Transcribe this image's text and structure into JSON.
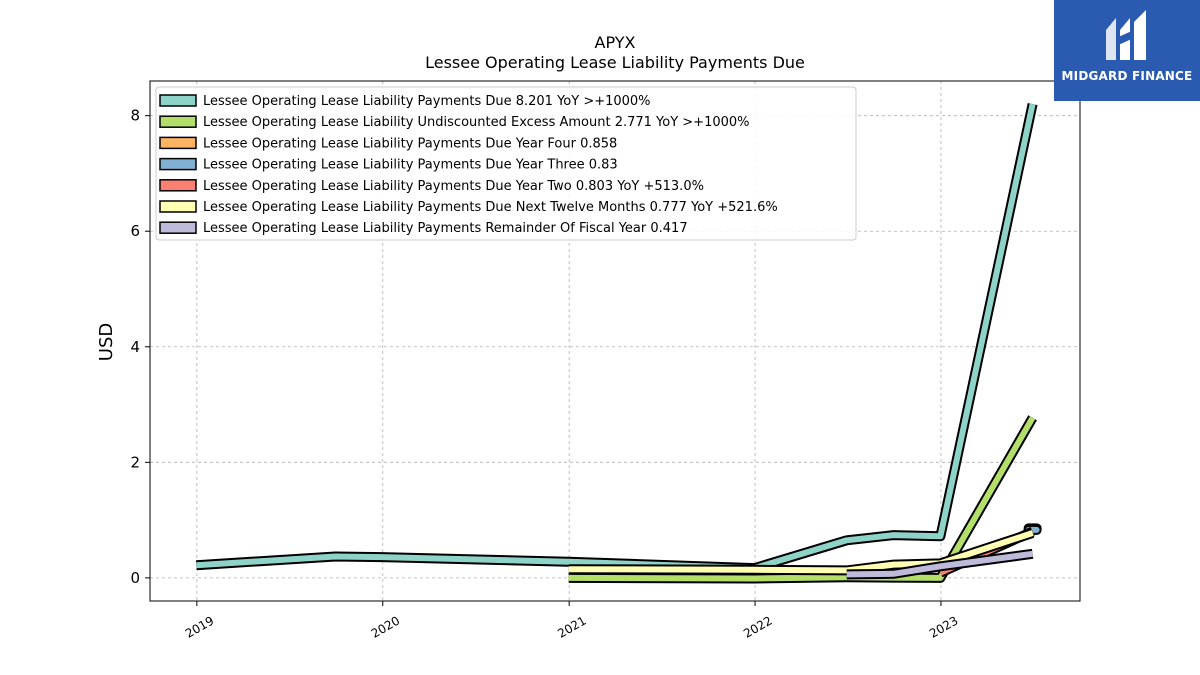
{
  "chart_data": {
    "type": "line",
    "title": "APYX",
    "subtitle": "Lessee Operating Lease Liability Payments Due",
    "ylabel": "USD",
    "xlabel": "",
    "x_ticks": [
      "2019",
      "2020",
      "2021",
      "2022",
      "2023"
    ],
    "y_ticks": [
      "0",
      "2",
      "4",
      "6",
      "8"
    ],
    "ylim": [
      -0.4,
      8.6
    ],
    "xlim": [
      "2018-10-01",
      "2023-10-01"
    ],
    "grid": true,
    "legend_position": "top-left",
    "series": [
      {
        "name": "Lessee Operating Lease Liability Payments Due",
        "legend": "Lessee Operating Lease Liability Payments Due  8.201 YoY >+1000%",
        "color": "#8dd3c7",
        "points": [
          [
            "2018-12-31",
            0.22
          ],
          [
            "2019-09-30",
            0.37
          ],
          [
            "2019-12-31",
            0.36
          ],
          [
            "2020-12-31",
            0.28
          ],
          [
            "2021-12-31",
            0.17
          ],
          [
            "2022-06-30",
            0.65
          ],
          [
            "2022-09-30",
            0.74
          ],
          [
            "2022-12-31",
            0.72
          ],
          [
            "2023-06-30",
            8.2
          ]
        ]
      },
      {
        "name": "Lessee Operating Lease Liability Undiscounted Excess Amount",
        "legend": "Lessee Operating Lease Liability Undiscounted Excess Amount  2.771 YoY >+1000%",
        "color": "#b3de69",
        "points": [
          [
            "2020-12-31",
            0.0
          ],
          [
            "2021-12-31",
            -0.01
          ],
          [
            "2022-06-30",
            0.01
          ],
          [
            "2022-12-31",
            0.0
          ],
          [
            "2023-06-30",
            2.77
          ]
        ]
      },
      {
        "name": "Lessee Operating Lease Liability Payments Due Year Four",
        "legend": "Lessee Operating Lease Liability Payments Due Year Four  0.858",
        "color": "#fdb462",
        "points": [
          [
            "2023-06-30",
            0.858
          ]
        ]
      },
      {
        "name": "Lessee Operating Lease Liability Payments Due Year Three",
        "legend": "Lessee Operating Lease Liability Payments Due Year Three  0.83",
        "color": "#80b1d3",
        "points": [
          [
            "2023-06-30",
            0.83
          ]
        ]
      },
      {
        "name": "Lessee Operating Lease Liability Payments Due Year Two",
        "legend": "Lessee Operating Lease Liability Payments Due Year Two  0.803 YoY +513.0%",
        "color": "#fb8072",
        "points": [
          [
            "2022-12-31",
            0.09
          ],
          [
            "2023-06-30",
            0.803
          ]
        ]
      },
      {
        "name": "Lessee Operating Lease Liability Payments Due Next Twelve Months",
        "legend": "Lessee Operating Lease Liability Payments Due Next Twelve Months  0.777 YoY +521.6%",
        "color": "#ffffb3",
        "points": [
          [
            "2020-12-31",
            0.15
          ],
          [
            "2021-12-31",
            0.14
          ],
          [
            "2022-06-30",
            0.13
          ],
          [
            "2022-09-30",
            0.23
          ],
          [
            "2022-12-31",
            0.25
          ],
          [
            "2023-06-30",
            0.777
          ]
        ]
      },
      {
        "name": "Lessee Operating Lease Liability Payments Remainder Of Fiscal Year",
        "legend": "Lessee Operating Lease Liability Payments Remainder Of Fiscal Year  0.417",
        "color": "#bebada",
        "points": [
          [
            "2022-06-30",
            0.06
          ],
          [
            "2022-09-30",
            0.07
          ],
          [
            "2022-12-31",
            0.2
          ],
          [
            "2023-06-30",
            0.417
          ]
        ]
      }
    ]
  },
  "logo": {
    "text": "MIDGARD FINANCE",
    "icon": "midgard-m-logo-icon",
    "background": "#2a5bb0"
  }
}
